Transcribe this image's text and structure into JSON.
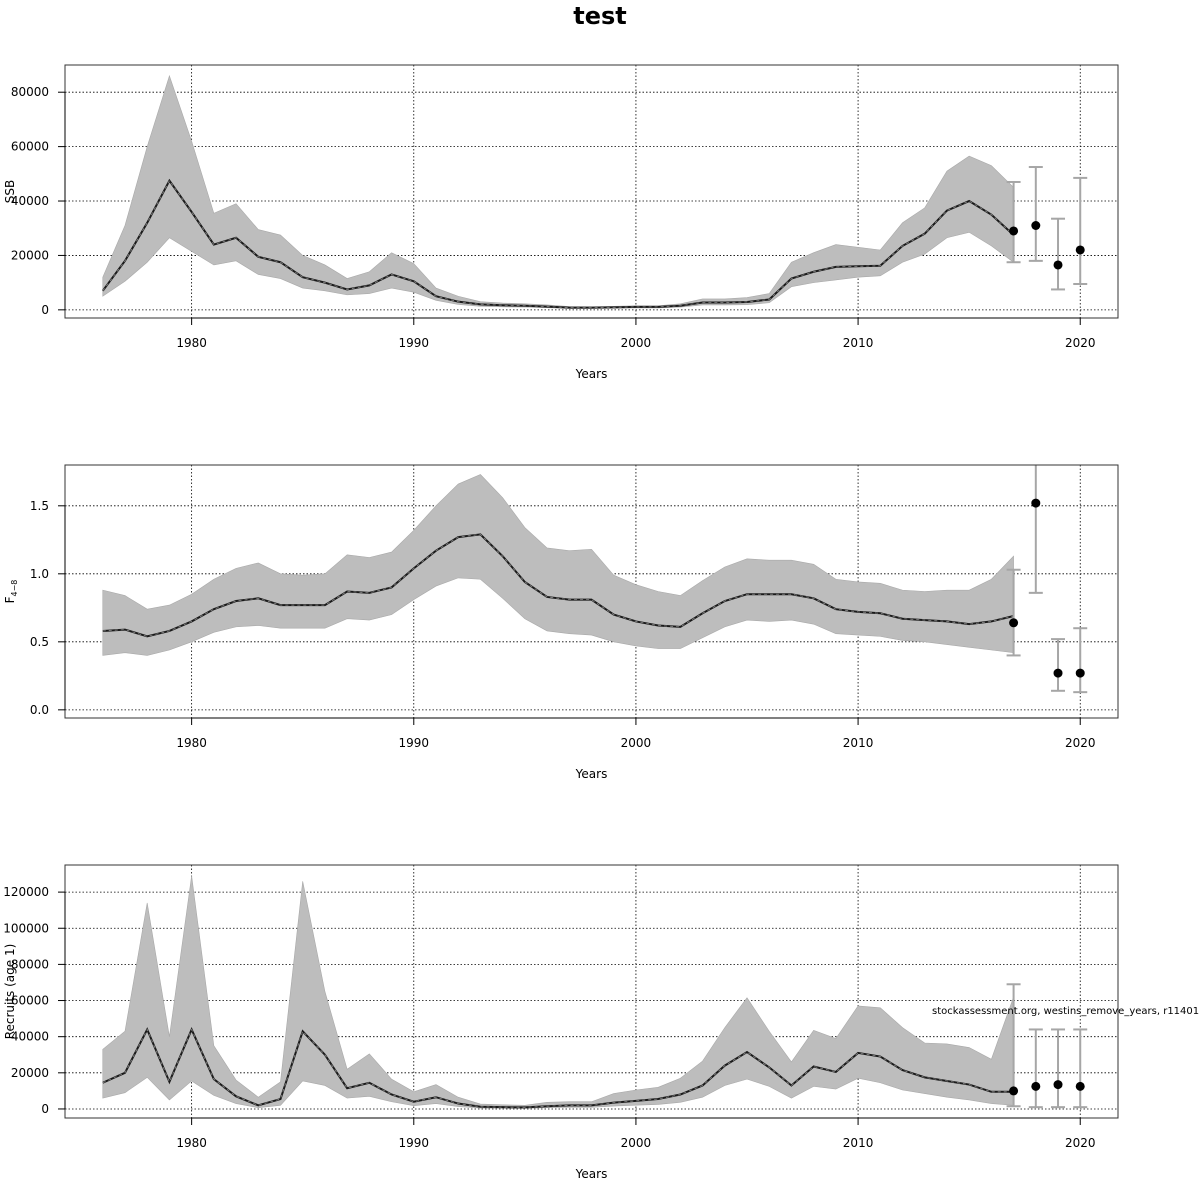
{
  "main_title": "test",
  "credit": "stockassessment.org, westins_remove_years, r11401",
  "chart_data": [
    {
      "type": "line",
      "ylabel": "SSB",
      "xlabel": "Years",
      "xlim": [
        1974.3,
        2021.7
      ],
      "ylim": [
        -3000,
        90000
      ],
      "xticks": [
        1980,
        1990,
        2000,
        2010,
        2020
      ],
      "yticks": [
        0,
        20000,
        40000,
        60000,
        80000
      ],
      "grid": true,
      "x": [
        1976,
        1977,
        1978,
        1979,
        1980,
        1981,
        1982,
        1983,
        1984,
        1985,
        1986,
        1987,
        1988,
        1989,
        1990,
        1991,
        1992,
        1993,
        1994,
        1995,
        1996,
        1997,
        1998,
        1999,
        2000,
        2001,
        2002,
        2003,
        2004,
        2005,
        2006,
        2007,
        2008,
        2009,
        2010,
        2011,
        2012,
        2013,
        2014,
        2015,
        2016,
        2017
      ],
      "estimate": [
        7000,
        18000,
        32000,
        47500,
        36000,
        24000,
        26500,
        19500,
        17500,
        12000,
        10000,
        7500,
        9000,
        13000,
        10500,
        5000,
        3000,
        2000,
        1700,
        1500,
        1200,
        800,
        800,
        900,
        1100,
        1100,
        1500,
        2700,
        2700,
        2900,
        3800,
        11500,
        14000,
        15800,
        16000,
        16200,
        23500,
        28000,
        36500,
        40000,
        35000,
        27500
      ],
      "upper": [
        12000,
        31000,
        60000,
        86000,
        62000,
        35500,
        39000,
        29500,
        27500,
        20000,
        16500,
        11500,
        14000,
        21000,
        17000,
        8000,
        5000,
        3000,
        2500,
        2200,
        1800,
        1200,
        1100,
        1300,
        1500,
        1500,
        2200,
        4000,
        4000,
        4500,
        6000,
        17500,
        21000,
        24000,
        23000,
        22000,
        32000,
        37500,
        51000,
        56500,
        53000,
        45000
      ],
      "lower": [
        5000,
        10500,
        17500,
        26500,
        21500,
        16500,
        18000,
        13000,
        11500,
        8000,
        7000,
        5500,
        6000,
        8000,
        6500,
        3500,
        2000,
        1300,
        1100,
        1000,
        800,
        500,
        500,
        600,
        700,
        700,
        1000,
        1800,
        1800,
        1900,
        2600,
        8500,
        10000,
        11000,
        12000,
        12500,
        17500,
        20500,
        26500,
        28500,
        23500,
        17500
      ],
      "point_estimates": {
        "x": [
          2017,
          2018,
          2019,
          2020
        ],
        "y": [
          29000,
          31000,
          16500,
          22000
        ],
        "upper": [
          47000,
          52500,
          33500,
          48500
        ],
        "lower": [
          17500,
          18000,
          7500,
          9500
        ]
      }
    },
    {
      "type": "line",
      "ylabel": "F",
      "ylabel_sub": "4−8",
      "xlabel": "Years",
      "xlim": [
        1974.3,
        2021.7
      ],
      "ylim": [
        -0.06,
        1.8
      ],
      "xticks": [
        1980,
        1990,
        2000,
        2010,
        2020
      ],
      "yticks": [
        0.0,
        0.5,
        1.0,
        1.5
      ],
      "ytick_labels": [
        "0.0",
        "0.5",
        "1.0",
        "1.5"
      ],
      "grid": true,
      "x": [
        1976,
        1977,
        1978,
        1979,
        1980,
        1981,
        1982,
        1983,
        1984,
        1985,
        1986,
        1987,
        1988,
        1989,
        1990,
        1991,
        1992,
        1993,
        1994,
        1995,
        1996,
        1997,
        1998,
        1999,
        2000,
        2001,
        2002,
        2003,
        2004,
        2005,
        2006,
        2007,
        2008,
        2009,
        2010,
        2011,
        2012,
        2013,
        2014,
        2015,
        2016,
        2017
      ],
      "estimate": [
        0.58,
        0.59,
        0.54,
        0.58,
        0.65,
        0.74,
        0.8,
        0.82,
        0.77,
        0.77,
        0.77,
        0.87,
        0.86,
        0.9,
        1.04,
        1.17,
        1.27,
        1.29,
        1.13,
        0.94,
        0.83,
        0.81,
        0.81,
        0.7,
        0.65,
        0.62,
        0.61,
        0.71,
        0.8,
        0.85,
        0.85,
        0.85,
        0.82,
        0.74,
        0.72,
        0.71,
        0.67,
        0.66,
        0.65,
        0.63,
        0.65,
        0.69
      ],
      "upper": [
        0.88,
        0.84,
        0.74,
        0.77,
        0.85,
        0.96,
        1.04,
        1.08,
        1.0,
        0.99,
        1.0,
        1.14,
        1.12,
        1.16,
        1.32,
        1.5,
        1.66,
        1.73,
        1.56,
        1.34,
        1.19,
        1.17,
        1.18,
        0.99,
        0.92,
        0.87,
        0.84,
        0.95,
        1.05,
        1.11,
        1.1,
        1.1,
        1.07,
        0.96,
        0.94,
        0.93,
        0.88,
        0.87,
        0.88,
        0.88,
        0.96,
        1.13
      ],
      "lower": [
        0.4,
        0.42,
        0.4,
        0.44,
        0.5,
        0.57,
        0.61,
        0.62,
        0.6,
        0.6,
        0.6,
        0.67,
        0.66,
        0.7,
        0.81,
        0.91,
        0.97,
        0.96,
        0.82,
        0.67,
        0.58,
        0.56,
        0.55,
        0.5,
        0.47,
        0.45,
        0.45,
        0.53,
        0.61,
        0.66,
        0.65,
        0.66,
        0.63,
        0.56,
        0.55,
        0.54,
        0.51,
        0.5,
        0.48,
        0.46,
        0.44,
        0.42
      ],
      "point_estimates": {
        "x": [
          2017,
          2018,
          2019,
          2020
        ],
        "y": [
          0.64,
          1.52,
          0.27,
          0.27
        ],
        "upper": [
          1.03,
          1.82,
          0.52,
          0.6
        ],
        "lower": [
          0.4,
          0.86,
          0.14,
          0.13
        ]
      }
    },
    {
      "type": "line",
      "ylabel": "Recruits (age 1)",
      "xlabel": "Years",
      "xlim": [
        1974.3,
        2021.7
      ],
      "ylim": [
        -5000,
        135000
      ],
      "xticks": [
        1980,
        1990,
        2000,
        2010,
        2020
      ],
      "yticks": [
        0,
        20000,
        40000,
        60000,
        80000,
        100000,
        120000
      ],
      "grid": true,
      "x": [
        1976,
        1977,
        1978,
        1979,
        1980,
        1981,
        1982,
        1983,
        1984,
        1985,
        1986,
        1987,
        1988,
        1989,
        1990,
        1991,
        1992,
        1993,
        1994,
        1995,
        1996,
        1997,
        1998,
        1999,
        2000,
        2001,
        2002,
        2003,
        2004,
        2005,
        2006,
        2007,
        2008,
        2009,
        2010,
        2011,
        2012,
        2013,
        2014,
        2015,
        2016,
        2017
      ],
      "estimate": [
        14500,
        20000,
        44000,
        15000,
        44000,
        16500,
        7000,
        2000,
        5500,
        43000,
        30000,
        11500,
        14500,
        8000,
        4000,
        6500,
        3000,
        1200,
        1000,
        900,
        1500,
        2000,
        2000,
        3500,
        4500,
        5500,
        8000,
        13000,
        24000,
        31500,
        23000,
        13000,
        23500,
        20500,
        31000,
        29000,
        21500,
        17500,
        15500,
        13500,
        9500,
        9500
      ],
      "upper": [
        33000,
        43000,
        114000,
        40000,
        129000,
        35000,
        16000,
        6500,
        15000,
        126000,
        65000,
        22000,
        30500,
        16500,
        9500,
        13500,
        6500,
        2700,
        2300,
        2000,
        3700,
        4000,
        4000,
        8500,
        10500,
        12000,
        17000,
        26500,
        45000,
        61500,
        43000,
        26000,
        43500,
        39000,
        57000,
        56000,
        45000,
        36500,
        36000,
        34000,
        27500,
        62000
      ],
      "lower": [
        6000,
        9000,
        17500,
        5000,
        15500,
        7500,
        3000,
        700,
        2000,
        15500,
        13000,
        6000,
        7000,
        4000,
        1800,
        3000,
        1300,
        500,
        400,
        350,
        700,
        900,
        900,
        1600,
        2100,
        2500,
        3700,
        6500,
        13000,
        16500,
        12500,
        6000,
        12500,
        11000,
        17000,
        14500,
        10500,
        8500,
        6500,
        5000,
        3000,
        2000
      ],
      "point_estimates": {
        "x": [
          2017,
          2018,
          2019,
          2020
        ],
        "y": [
          10000,
          12500,
          13500,
          12500
        ],
        "upper": [
          69000,
          44000,
          44000,
          44000
        ],
        "lower": [
          1500,
          1000,
          1000,
          1000
        ]
      }
    }
  ]
}
